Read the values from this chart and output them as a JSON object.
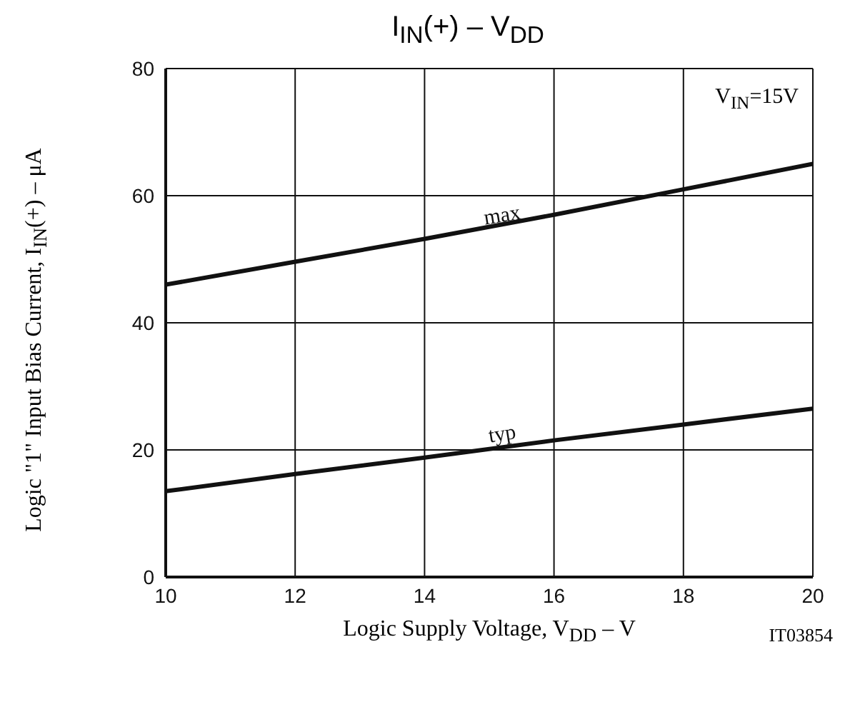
{
  "chart_data": {
    "type": "line",
    "title": "I$_{IN}$(+) – V$_{DD}$",
    "xlabel": "Logic Supply Voltage, V$_{DD}$ – V",
    "ylabel": "Logic \"1\" Input Bias Current, I$_{IN}$(+) – μA",
    "annotations": [
      "V$_{IN}$=15V",
      "IT03854"
    ],
    "x": [
      10,
      12,
      14,
      16,
      18,
      20
    ],
    "series": [
      {
        "name": "max",
        "color": "#111111",
        "values": [
          46,
          49.6,
          53.2,
          57,
          61,
          65
        ]
      },
      {
        "name": "typ",
        "color": "#111111",
        "values": [
          13.5,
          16.2,
          18.8,
          21.5,
          24,
          26.5
        ]
      }
    ],
    "xlim": [
      10,
      20
    ],
    "xticks": [
      10,
      12,
      14,
      16,
      18,
      20
    ],
    "ylim": [
      0,
      80
    ],
    "yticks": [
      0,
      20,
      40,
      60,
      80
    ],
    "grid": true,
    "legend": false,
    "marker": "none",
    "line_style": "solid"
  }
}
